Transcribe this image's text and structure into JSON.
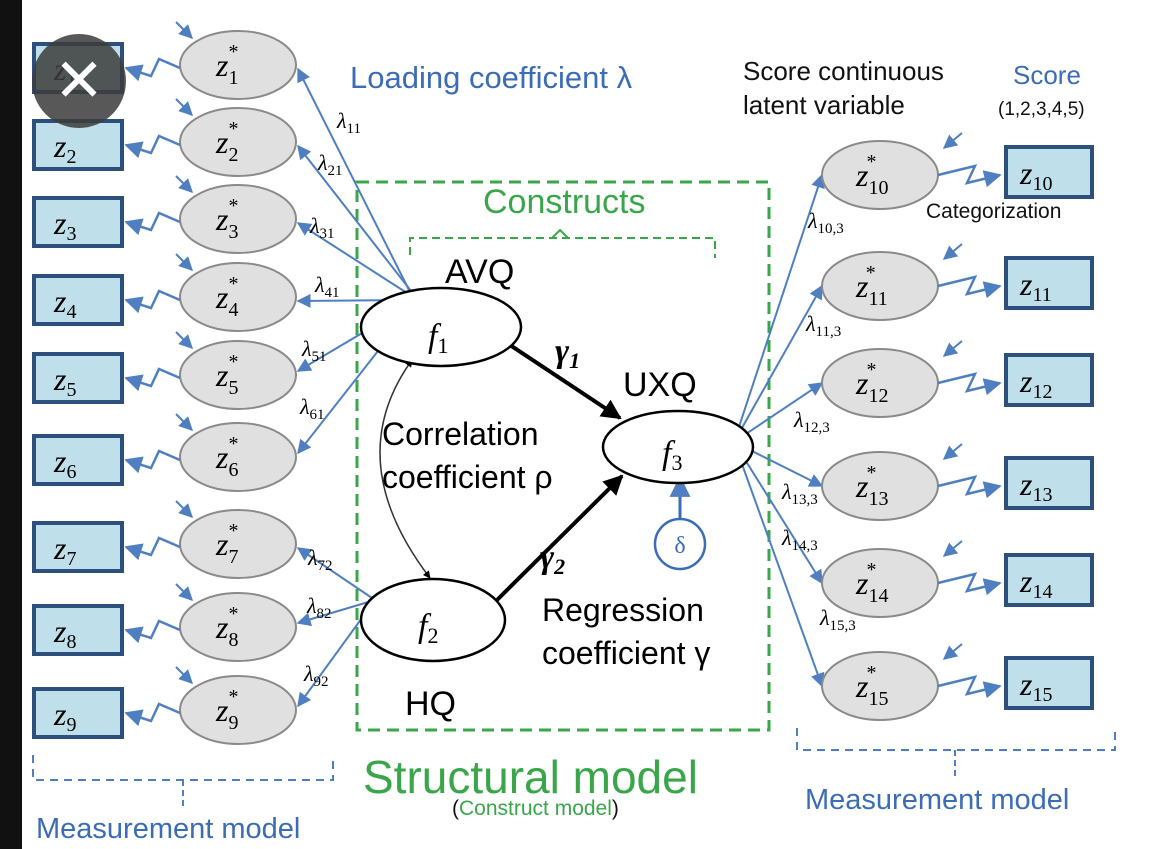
{
  "close_button": {
    "glyph": "✕",
    "icon": "close-icon"
  },
  "headings": {
    "loading_coefficient": "Loading coefficient λ",
    "score_continuous": "Score continuous",
    "latent_variable": "latent variable",
    "score": "Score",
    "score_levels": "(1,2,3,4,5)",
    "categorization": "Categorization",
    "constructs": "Constructs",
    "structural_model": "Structural model",
    "construct_model_open": "(",
    "construct_model": "Construct model",
    "construct_model_close": ")",
    "measurement_model_left": "Measurement model",
    "measurement_model_right": "Measurement model"
  },
  "factors": {
    "f1": {
      "base": "f",
      "sub": "1",
      "label": "AVQ"
    },
    "f2": {
      "base": "f",
      "sub": "2",
      "label": "HQ"
    },
    "f3": {
      "base": "f",
      "sub": "3",
      "label": "UXQ"
    }
  },
  "structural": {
    "gamma1": {
      "base": "γ",
      "sub": "1"
    },
    "gamma2": {
      "base": "γ",
      "sub": "2"
    },
    "correlation_line1": "Correlation",
    "correlation_line2": "coefficient ρ",
    "regression_line1": "Regression",
    "regression_line2": "coefficient γ",
    "delta": "δ"
  },
  "left_indicators": [
    {
      "z": "z",
      "sub": "1",
      "zs": "z",
      "star": "*",
      "lam": "λ",
      "lam_sub": "11"
    },
    {
      "z": "z",
      "sub": "2",
      "zs": "z",
      "star": "*",
      "lam": "λ",
      "lam_sub": "21"
    },
    {
      "z": "z",
      "sub": "3",
      "zs": "z",
      "star": "*",
      "lam": "λ",
      "lam_sub": "31"
    },
    {
      "z": "z",
      "sub": "4",
      "zs": "z",
      "star": "*",
      "lam": "λ",
      "lam_sub": "41"
    },
    {
      "z": "z",
      "sub": "5",
      "zs": "z",
      "star": "*",
      "lam": "λ",
      "lam_sub": "51"
    },
    {
      "z": "z",
      "sub": "6",
      "zs": "z",
      "star": "*",
      "lam": "λ",
      "lam_sub": "61"
    },
    {
      "z": "z",
      "sub": "7",
      "zs": "z",
      "star": "*",
      "lam": "λ",
      "lam_sub": "72"
    },
    {
      "z": "z",
      "sub": "8",
      "zs": "z",
      "star": "*",
      "lam": "λ",
      "lam_sub": "82"
    },
    {
      "z": "z",
      "sub": "9",
      "zs": "z",
      "star": "*",
      "lam": "λ",
      "lam_sub": "92"
    }
  ],
  "right_indicators": [
    {
      "z": "z",
      "sub": "10",
      "zs": "z",
      "star": "*",
      "lam": "λ",
      "lam_sub": "10,3"
    },
    {
      "z": "z",
      "sub": "11",
      "zs": "z",
      "star": "*",
      "lam": "λ",
      "lam_sub": "11,3"
    },
    {
      "z": "z",
      "sub": "12",
      "zs": "z",
      "star": "*",
      "lam": "λ",
      "lam_sub": "12,3"
    },
    {
      "z": "z",
      "sub": "13",
      "zs": "z",
      "star": "*",
      "lam": "λ",
      "lam_sub": "13,3"
    },
    {
      "z": "z",
      "sub": "14",
      "zs": "z",
      "star": "*",
      "lam": "λ",
      "lam_sub": "14,3"
    },
    {
      "z": "z",
      "sub": "15",
      "zs": "z",
      "star": "*",
      "lam": "λ",
      "lam_sub": "15,3"
    }
  ],
  "colors": {
    "indicator_box_fill": "#bfe0ea",
    "indicator_box_stroke": "#2c4f7c",
    "latent_fill": "#e0e0e0",
    "latent_stroke": "#8a8a8a",
    "blue_line": "#4f7fc0",
    "green": "#3aa64a",
    "caption_blue": "#3b6cb7"
  }
}
